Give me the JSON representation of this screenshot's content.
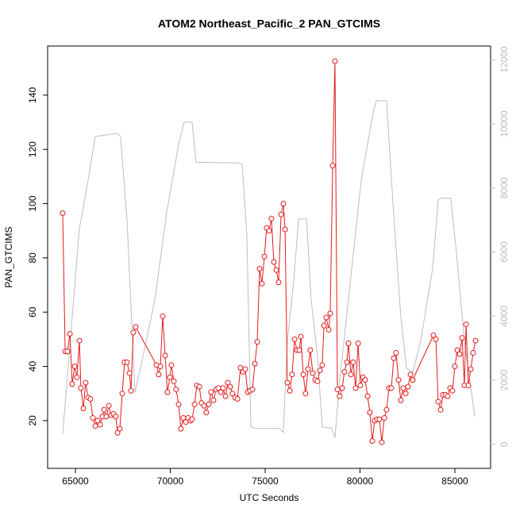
{
  "chart_data": {
    "type": "line",
    "title": "ATOM2 Northeast_Pacific_2 PAN_GTCIMS",
    "xlabel": "UTC Seconds",
    "ylabel": "PAN_GTCIMS",
    "xlim": [
      63536,
      86883
    ],
    "xticks": [
      65000,
      70000,
      75000,
      80000,
      85000
    ],
    "ylim": [
      2.4,
      158.1
    ],
    "yticks": [
      20,
      40,
      60,
      80,
      100,
      120,
      140
    ],
    "y2lim": [
      -748,
      12424
    ],
    "y2ticks": [
      0,
      2000,
      4000,
      6000,
      8000,
      10000,
      12000
    ],
    "series": [
      {
        "color": "#e31a1c",
        "marker": "circle",
        "x": [
          64330,
          64460,
          64580,
          64710,
          64830,
          64960,
          65080,
          65210,
          65290,
          65420,
          65540,
          65670,
          65790,
          65920,
          66050,
          66170,
          66300,
          66420,
          66510,
          66630,
          66760,
          66880,
          67010,
          67130,
          67220,
          67340,
          67470,
          67590,
          67720,
          67850,
          67930,
          68050,
          68180,
          69270,
          69390,
          69480,
          69600,
          69730,
          69850,
          69980,
          70060,
          70190,
          70310,
          70440,
          70560,
          70690,
          70820,
          70940,
          71070,
          71150,
          71280,
          71400,
          71530,
          71650,
          71780,
          71900,
          72030,
          72150,
          72280,
          72410,
          72530,
          72660,
          72780,
          72910,
          73030,
          73160,
          73280,
          73410,
          73540,
          73700,
          73830,
          73950,
          74080,
          74200,
          74330,
          74460,
          74580,
          74710,
          74830,
          74960,
          75080,
          75210,
          75330,
          75460,
          75590,
          75710,
          75840,
          75960,
          76050,
          76170,
          76300,
          76420,
          76550,
          76670,
          76800,
          76880,
          77010,
          77130,
          77260,
          77380,
          77510,
          77640,
          77760,
          77890,
          78010,
          78100,
          78220,
          78350,
          78430,
          78560,
          78680,
          78810,
          78930,
          79060,
          79180,
          79310,
          79390,
          79520,
          79640,
          79770,
          79900,
          80020,
          80150,
          80270,
          80400,
          80520,
          80650,
          80770,
          80900,
          81020,
          81150,
          81280,
          81400,
          81530,
          81650,
          81780,
          81900,
          82030,
          82150,
          82280,
          82410,
          82530,
          82660,
          82780,
          83870,
          84000,
          84120,
          84250,
          84370,
          84500,
          84620,
          84750,
          84870,
          85000,
          85130,
          85250,
          85380,
          85500,
          85590,
          85710,
          85840,
          85960,
          86090
        ],
        "values": [
          96.5,
          45.5,
          45.5,
          52,
          33.5,
          40,
          36,
          49.5,
          32,
          24.5,
          34,
          28.5,
          28,
          21,
          18,
          20,
          18.5,
          21.5,
          24,
          21.5,
          25.5,
          22,
          22.5,
          21.5,
          15.5,
          17,
          30,
          41.5,
          41.5,
          37.5,
          31,
          52.5,
          54.5,
          40.5,
          37,
          40,
          58.5,
          44,
          30.5,
          36,
          40.5,
          34.5,
          31.5,
          26,
          17,
          21,
          19.5,
          21,
          20,
          20.5,
          26,
          33,
          32.5,
          26.5,
          25.5,
          23,
          26,
          30.5,
          27.5,
          31.5,
          32,
          30.5,
          32,
          29,
          34,
          32.5,
          30,
          28.5,
          28,
          39.5,
          38,
          39,
          30.5,
          31,
          31.5,
          41,
          49,
          76,
          70.5,
          80.5,
          91,
          90,
          94.5,
          78.5,
          75.5,
          71,
          96,
          100,
          90.5,
          34,
          31,
          37,
          50,
          46,
          46,
          51,
          37,
          30,
          39,
          46,
          37.5,
          35,
          34.5,
          38.5,
          40.5,
          55,
          58,
          53.5,
          59.5,
          114,
          152.5,
          31.5,
          29,
          32,
          38,
          41.5,
          48.5,
          37,
          41.5,
          32,
          48.5,
          33,
          36,
          35,
          29,
          23,
          12.5,
          20,
          20.5,
          20.5,
          12,
          21,
          24,
          32,
          32,
          43,
          45,
          35,
          27.5,
          32,
          30,
          32.5,
          37,
          35,
          51.5,
          50,
          27,
          24,
          29.5,
          29.5,
          29,
          32,
          31,
          40,
          46,
          44.5,
          50.5,
          33,
          55.5,
          33,
          39,
          45,
          49.5
        ]
      },
      {
        "color": "#bebebe",
        "axis": "y2",
        "x": [
          64330,
          65210,
          65630,
          66050,
          66880,
          67220,
          67380,
          67720,
          68140,
          68560,
          69180,
          69810,
          70440,
          70730,
          71150,
          71360,
          73580,
          73790,
          74040,
          74250,
          74500,
          75750,
          75960,
          76170,
          76510,
          76760,
          77180,
          77430,
          77760,
          78010,
          78510,
          78680,
          78930,
          79430,
          80060,
          80690,
          80860,
          81400,
          81740,
          82150,
          82450,
          82780,
          83200,
          83830,
          84120,
          84250,
          84790,
          85080,
          85500,
          86050
        ],
        "values": [
          320,
          6730,
          8100,
          9600,
          9680,
          9700,
          9600,
          6980,
          1620,
          2740,
          4490,
          7230,
          9350,
          10050,
          10050,
          8800,
          8780,
          8730,
          6480,
          550,
          500,
          500,
          370,
          3240,
          5110,
          7030,
          7030,
          4490,
          2740,
          550,
          500,
          220,
          2000,
          4740,
          8230,
          10350,
          10720,
          10720,
          7480,
          3990,
          2370,
          2240,
          3240,
          5490,
          7610,
          7680,
          7680,
          5990,
          3240,
          870
        ]
      }
    ]
  }
}
